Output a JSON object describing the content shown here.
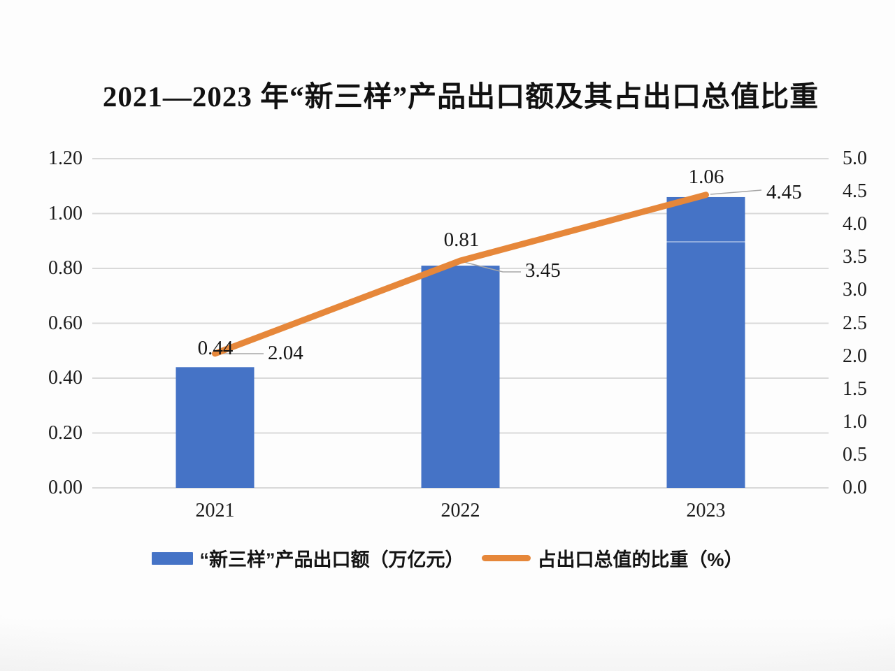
{
  "title": "2021—2023 年“新三样”产品出口额及其占出口总值比重",
  "chart_data": {
    "type": "bar",
    "subtype": "combo-bar-line-dual-axis",
    "title": "2021—2023 年“新三样”产品出口额及其占出口总值比重",
    "categories": [
      "2021",
      "2022",
      "2023"
    ],
    "series": [
      {
        "name": "“新三样”产品出口额（万亿元）",
        "type": "bar",
        "axis": "left",
        "values": [
          0.44,
          0.81,
          1.06
        ],
        "labels": [
          "0.44",
          "0.81",
          "1.06"
        ],
        "color": "#4573C6"
      },
      {
        "name": "占出口总值的比重（%）",
        "type": "line",
        "axis": "right",
        "values": [
          2.04,
          3.45,
          4.45
        ],
        "labels": [
          "2.04",
          "3.45",
          "4.45"
        ],
        "color": "#E6873A"
      }
    ],
    "left_axis": {
      "min": 0,
      "max": 1.2,
      "ticks": [
        "1.20",
        "1.00",
        "0.80",
        "0.60",
        "0.40",
        "0.20",
        "0.00"
      ]
    },
    "right_axis": {
      "min": 0,
      "max": 5.0,
      "ticks": [
        "5.0",
        "4.5",
        "4.0",
        "3.5",
        "3.0",
        "2.5",
        "2.0",
        "1.5",
        "1.0",
        "0.5",
        "0.0"
      ]
    },
    "grid": true,
    "legend_position": "bottom",
    "gridline_color": "#D9D9D9",
    "leader_line_color": "#A6A6A6",
    "text_color": "#1C1C1C",
    "background_color": "#FDFDFD"
  }
}
